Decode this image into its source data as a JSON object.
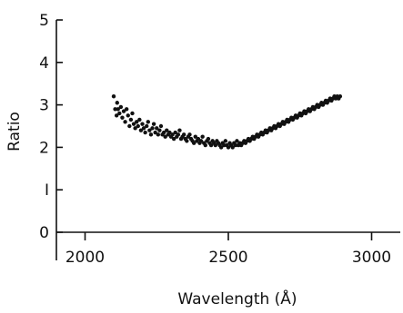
{
  "chart_data": {
    "type": "scatter",
    "title": "",
    "xlabel": "Wavelength (Å)",
    "ylabel": "Ratio",
    "xlim": [
      1900,
      3100
    ],
    "ylim": [
      0,
      5
    ],
    "x_ticks": [
      2000,
      2500,
      3000
    ],
    "y_ticks": [
      0,
      1,
      2,
      3,
      4,
      5
    ],
    "x_tick_labels": [
      "2000",
      "2500",
      "3000"
    ],
    "y_tick_labels": [
      "0",
      "I",
      "2",
      "3",
      "4",
      "5"
    ],
    "grid": false,
    "series": [
      {
        "points": [
          [
            2100,
            3.2
          ],
          [
            2105,
            2.9
          ],
          [
            2110,
            2.75
          ],
          [
            2112,
            3.05
          ],
          [
            2115,
            2.9
          ],
          [
            2120,
            2.8
          ],
          [
            2125,
            2.95
          ],
          [
            2130,
            2.7
          ],
          [
            2135,
            2.85
          ],
          [
            2140,
            2.6
          ],
          [
            2145,
            2.9
          ],
          [
            2150,
            2.75
          ],
          [
            2155,
            2.5
          ],
          [
            2160,
            2.65
          ],
          [
            2165,
            2.8
          ],
          [
            2170,
            2.55
          ],
          [
            2175,
            2.45
          ],
          [
            2180,
            2.6
          ],
          [
            2185,
            2.5
          ],
          [
            2190,
            2.65
          ],
          [
            2195,
            2.4
          ],
          [
            2200,
            2.55
          ],
          [
            2205,
            2.45
          ],
          [
            2210,
            2.35
          ],
          [
            2215,
            2.5
          ],
          [
            2220,
            2.6
          ],
          [
            2225,
            2.4
          ],
          [
            2230,
            2.3
          ],
          [
            2235,
            2.45
          ],
          [
            2240,
            2.55
          ],
          [
            2245,
            2.35
          ],
          [
            2250,
            2.45
          ],
          [
            2255,
            2.3
          ],
          [
            2260,
            2.4
          ],
          [
            2265,
            2.5
          ],
          [
            2270,
            2.3
          ],
          [
            2275,
            2.35
          ],
          [
            2280,
            2.25
          ],
          [
            2285,
            2.4
          ],
          [
            2290,
            2.3
          ],
          [
            2295,
            2.35
          ],
          [
            2300,
            2.25
          ],
          [
            2305,
            2.3
          ],
          [
            2310,
            2.2
          ],
          [
            2315,
            2.35
          ],
          [
            2320,
            2.25
          ],
          [
            2325,
            2.3
          ],
          [
            2330,
            2.4
          ],
          [
            2335,
            2.2
          ],
          [
            2340,
            2.25
          ],
          [
            2345,
            2.3
          ],
          [
            2350,
            2.2
          ],
          [
            2355,
            2.15
          ],
          [
            2360,
            2.25
          ],
          [
            2365,
            2.3
          ],
          [
            2370,
            2.2
          ],
          [
            2375,
            2.15
          ],
          [
            2380,
            2.1
          ],
          [
            2385,
            2.25
          ],
          [
            2390,
            2.15
          ],
          [
            2395,
            2.2
          ],
          [
            2400,
            2.1
          ],
          [
            2405,
            2.15
          ],
          [
            2410,
            2.25
          ],
          [
            2415,
            2.1
          ],
          [
            2420,
            2.05
          ],
          [
            2425,
            2.15
          ],
          [
            2430,
            2.2
          ],
          [
            2435,
            2.1
          ],
          [
            2440,
            2.05
          ],
          [
            2445,
            2.15
          ],
          [
            2450,
            2.1
          ],
          [
            2455,
            2.05
          ],
          [
            2460,
            2.15
          ],
          [
            2465,
            2.1
          ],
          [
            2470,
            2.05
          ],
          [
            2475,
            2.0
          ],
          [
            2480,
            2.1
          ],
          [
            2485,
            2.05
          ],
          [
            2490,
            2.15
          ],
          [
            2495,
            2.05
          ],
          [
            2500,
            2.0
          ],
          [
            2505,
            2.1
          ],
          [
            2510,
            2.05
          ],
          [
            2515,
            2.0
          ],
          [
            2520,
            2.1
          ],
          [
            2525,
            2.05
          ],
          [
            2530,
            2.15
          ],
          [
            2535,
            2.05
          ],
          [
            2540,
            2.1
          ],
          [
            2545,
            2.05
          ],
          [
            2550,
            2.1
          ],
          [
            2555,
            2.15
          ],
          [
            2560,
            2.1
          ],
          [
            2565,
            2.15
          ],
          [
            2570,
            2.2
          ],
          [
            2575,
            2.15
          ],
          [
            2580,
            2.2
          ],
          [
            2585,
            2.25
          ],
          [
            2590,
            2.2
          ],
          [
            2595,
            2.25
          ],
          [
            2600,
            2.3
          ],
          [
            2605,
            2.25
          ],
          [
            2610,
            2.3
          ],
          [
            2615,
            2.35
          ],
          [
            2620,
            2.3
          ],
          [
            2625,
            2.35
          ],
          [
            2630,
            2.4
          ],
          [
            2635,
            2.35
          ],
          [
            2640,
            2.4
          ],
          [
            2645,
            2.45
          ],
          [
            2650,
            2.4
          ],
          [
            2655,
            2.45
          ],
          [
            2660,
            2.5
          ],
          [
            2665,
            2.45
          ],
          [
            2670,
            2.5
          ],
          [
            2675,
            2.55
          ],
          [
            2680,
            2.5
          ],
          [
            2685,
            2.55
          ],
          [
            2690,
            2.6
          ],
          [
            2695,
            2.55
          ],
          [
            2700,
            2.6
          ],
          [
            2705,
            2.65
          ],
          [
            2710,
            2.6
          ],
          [
            2715,
            2.65
          ],
          [
            2720,
            2.7
          ],
          [
            2725,
            2.65
          ],
          [
            2730,
            2.7
          ],
          [
            2735,
            2.75
          ],
          [
            2740,
            2.7
          ],
          [
            2745,
            2.75
          ],
          [
            2750,
            2.8
          ],
          [
            2755,
            2.75
          ],
          [
            2760,
            2.8
          ],
          [
            2765,
            2.85
          ],
          [
            2770,
            2.8
          ],
          [
            2775,
            2.85
          ],
          [
            2780,
            2.9
          ],
          [
            2785,
            2.85
          ],
          [
            2790,
            2.9
          ],
          [
            2795,
            2.95
          ],
          [
            2800,
            2.9
          ],
          [
            2805,
            2.95
          ],
          [
            2810,
            3.0
          ],
          [
            2815,
            2.95
          ],
          [
            2820,
            3.0
          ],
          [
            2825,
            3.05
          ],
          [
            2830,
            3.0
          ],
          [
            2835,
            3.05
          ],
          [
            2840,
            3.1
          ],
          [
            2845,
            3.05
          ],
          [
            2850,
            3.1
          ],
          [
            2855,
            3.15
          ],
          [
            2860,
            3.1
          ],
          [
            2865,
            3.15
          ],
          [
            2870,
            3.2
          ],
          [
            2875,
            3.15
          ],
          [
            2880,
            3.2
          ],
          [
            2885,
            3.15
          ],
          [
            2890,
            3.2
          ]
        ]
      }
    ]
  }
}
